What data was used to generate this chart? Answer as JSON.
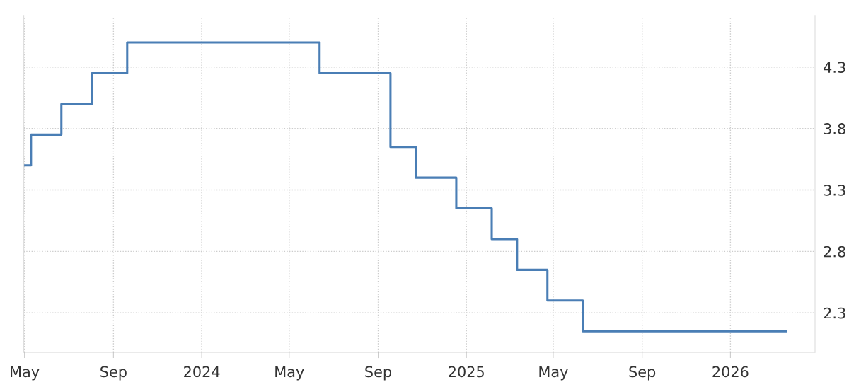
{
  "chart_data": {
    "type": "step",
    "x": [
      "2023-04-30",
      "2023-05-10",
      "2023-06-21",
      "2023-08-02",
      "2023-09-20",
      "2024-06-12",
      "2024-09-18",
      "2024-10-23",
      "2024-12-18",
      "2025-02-05",
      "2025-03-12",
      "2025-04-23",
      "2025-06-11",
      "2026-03-19"
    ],
    "series": [
      {
        "color": "#4a7eb5",
        "values": [
          3.5,
          3.75,
          4.0,
          4.25,
          4.5,
          4.25,
          3.65,
          3.4,
          3.15,
          2.9,
          2.65,
          2.4,
          2.15,
          2.15
        ]
      }
    ],
    "ylim": [
      1.98,
      4.72
    ],
    "yticks": [
      2.3,
      2.8,
      3.3,
      3.8,
      4.3
    ],
    "xlim": [
      "2023-04-30",
      "2026-04-28"
    ],
    "xticks": [
      {
        "value": "2023-05-01",
        "label": "May"
      },
      {
        "value": "2023-09-01",
        "label": "Sep"
      },
      {
        "value": "2024-01-01",
        "label": "2024"
      },
      {
        "value": "2024-05-01",
        "label": "May"
      },
      {
        "value": "2024-09-01",
        "label": "Sep"
      },
      {
        "value": "2025-01-01",
        "label": "2025"
      },
      {
        "value": "2025-05-01",
        "label": "May"
      },
      {
        "value": "2025-09-01",
        "label": "Sep"
      },
      {
        "value": "2026-01-01",
        "label": "2026"
      }
    ],
    "grid": true,
    "legend": false,
    "marker": "none",
    "line_style": "solid"
  }
}
